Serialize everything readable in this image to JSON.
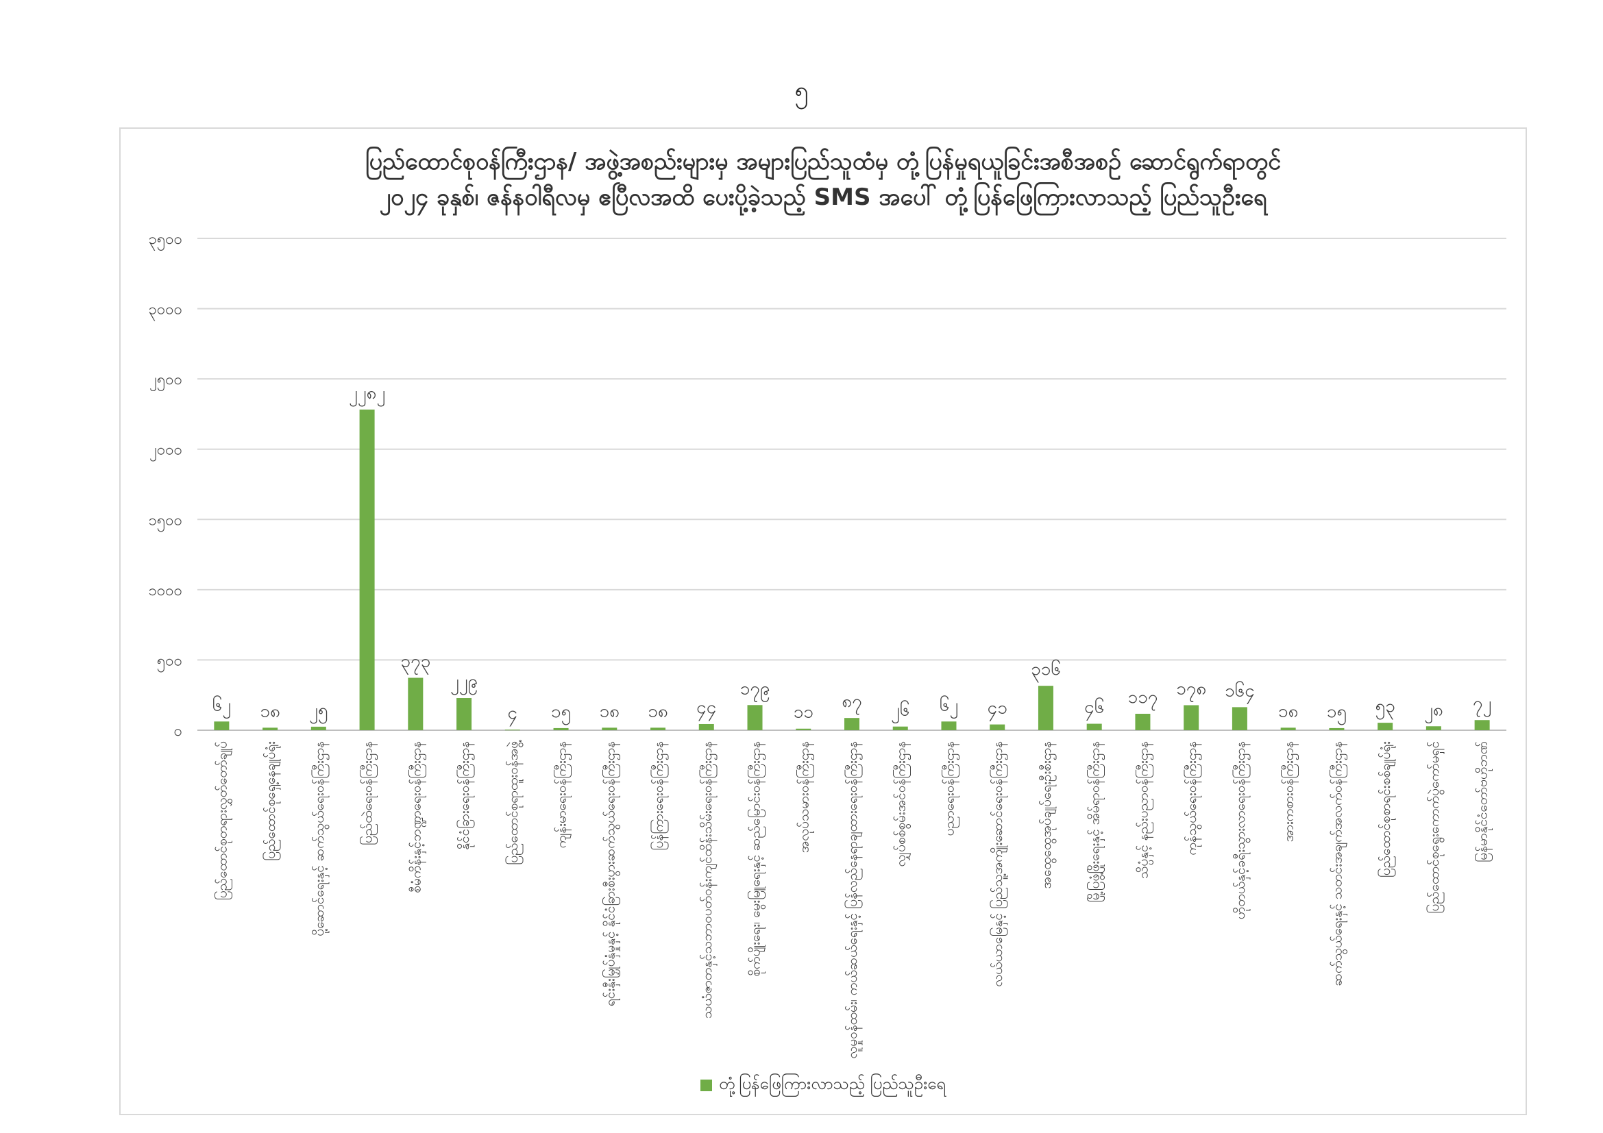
{
  "page": {
    "number": "၅"
  },
  "colors": {
    "bar": "#70ad47",
    "grid": "#d9d9d9",
    "axis": "#bfbfbf",
    "text": "#404040"
  },
  "chart_data": {
    "type": "bar",
    "title_lines": [
      "ပြည်ထောင်စုဝန်ကြီးဌာန/ အဖွဲ့အစည်းများမှ အများပြည်သူထံမှ တုံ့ပြန်မှုရယူခြင်းအစီအစဉ် ဆောင်ရွက်ရာတွင်",
      "၂၀၂၄ ခုနှစ်၊ ဇန်နဝါရီလမှ ဧပြီလအထိ ပေးပို့ခဲ့သည့် SMS အပေါ် တုံ့ပြန်ဖြေကြားလာသည့် ပြည်သူဦးရေ"
    ],
    "xlabel": "",
    "ylabel": "",
    "ylim": [
      0,
      3500
    ],
    "yticks": [
      0,
      500,
      1000,
      1500,
      2000,
      2500,
      3000,
      3500
    ],
    "ytick_labels": [
      "၀",
      "၅၀၀",
      "၁၀၀၀",
      "၁၅၀၀",
      "၂၀၀၀",
      "၂၅၀၀",
      "၃၀၀၀",
      "၃၅၀၀"
    ],
    "grid": true,
    "legend_position": "bottom",
    "categories": [
      "ပြည်ထောင်စုတရားလွှတ်တော်ချုပ်",
      "ပြည်ထောင်စုရှေ့နေချုပ်ရုံး",
      "ပို့ဆောင်ရေးနှင့် ဆက်သွယ်ရေးဝန်ကြီးဌာန",
      "ပြည်ထဲရေးဝန်ကြီးဌာန",
      "စီမံကိန်းနှင့်ဘဏ္ဍာရေးဝန်ကြီးဌာန",
      "နိုင်ငံခြားရေးဝန်ကြီးဌာန",
      "ပြည်ထောင်စုရာထူးဝန်အဖွဲ့",
      "ကျန်းမာရေးဝန်ကြီးဌာန",
      "ရင်းနှီးမြှုပ်နှံမှုနှင့် နိုင်ငံခြားစီးပွားဆက်သွယ်ရေးဝန်ကြီးဌာန",
      "ပြန်ကြားရေးဝန်ကြီးဌာန",
      "သယံဇာတနှင့်သဘာဝပတ်ဝန်းကျင်ထိန်းသိမ်းရေးဝန်ကြီးဌာန",
      "စိုက်ပျိုးရေး၊ မွေးမြူရေးနှင့် ဆည်မြောင်းဝန်ကြီးဌာန",
      "အလုပ်သမားဝန်ကြီးဌာန",
      "လူမှုဝန်ထမ်း၊ ကယ်ဆယ်ရေးနှင့် ပြန်လည်နေရာချထားရေးဝန်ကြီးဌာန",
      "လျှပ်စစ်စွမ်းအင်ဝန်ကြီးဌာန",
      "ပညာရေးဝန်ကြီးဌာန",
      "လယ်ယာမြေနှင့် ပြည်သူ့အကျိုးဆောင်ရေးဝန်ကြီးဌာန",
      "အထွေထွေအုပ်ချုပ်ရေးဦးစီးဌာန",
      "မြို့ပြဖွံ့ဖြိုးရေးနှင့် အိမ်ရာဝန်ကြီးဌာန",
      "သိပ္ပံနှင့် နည်းပညာဝန်ကြီးဌာန",
      "ကုန်သွယ်ရေးဝန်ကြီးဌာန",
      "ဟိုတယ်နှင့်ခရီးသွားလာရေးဝန်ကြီးဌာန",
      "အားကစားဝန်ကြီးဌာန",
      "ဆက်သွယ်ရေးနှင့် သတင်းအချက်အလက်ဝန်ကြီးဌာန",
      "ပြည်ထောင်စုစာရင်းစစ်ချုပ်ရုံး",
      "ပြည်ထောင်စုရွေးကောက်ပွဲကော်မရှင်",
      "မြန်မာနိုင်ငံတော်ဗဟိုဘဏ်"
    ],
    "values": [
      62,
      18,
      25,
      2282,
      373,
      229,
      4,
      15,
      18,
      18,
      44,
      179,
      11,
      87,
      26,
      62,
      41,
      316,
      46,
      117,
      178,
      164,
      18,
      15,
      53,
      28,
      72
    ],
    "value_labels": [
      "၆၂",
      "၁၈",
      "၂၅",
      "၂၂၈၂",
      "၃၇၃",
      "၂၂၉",
      "၄",
      "၁၅",
      "၁၈",
      "၁၈",
      "၄၄",
      "၁၇၉",
      "၁၁",
      "၈၇",
      "၂၆",
      "၆၂",
      "၄၁",
      "၃၁၆",
      "၄၆",
      "၁၁၇",
      "၁၇၈",
      "၁၆၄",
      "၁၈",
      "၁၅",
      "၅၃",
      "၂၈",
      "၇၂"
    ],
    "series": [
      {
        "name": "တုံ့ပြန်ဖြေကြားလာသည့် ပြည်သူဦးရေ"
      }
    ]
  }
}
